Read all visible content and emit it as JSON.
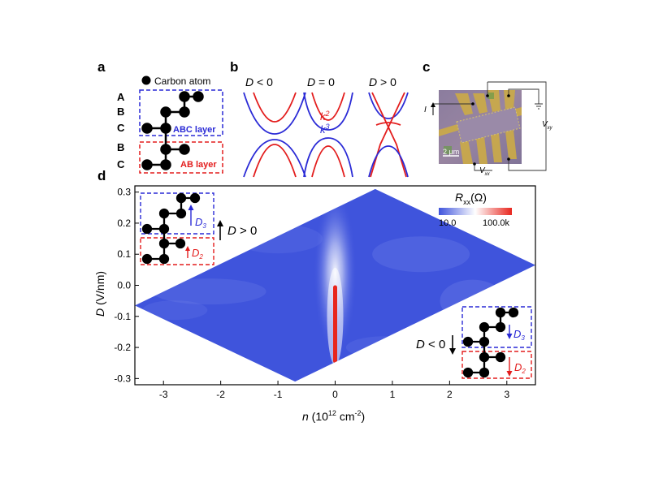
{
  "panels": {
    "a": {
      "label": "a",
      "legend": "Carbon atom",
      "layers": [
        "A",
        "B",
        "C",
        "B",
        "C"
      ],
      "abc_label": "ABC layer",
      "ab_label": "AB layer"
    },
    "b": {
      "label": "b",
      "titles": [
        {
          "pre": "D",
          "post": " < 0"
        },
        {
          "pre": "D",
          "post": " = 0"
        },
        {
          "pre": "D",
          "post": " > 0"
        }
      ],
      "k2": "k",
      "k2_sup": "2",
      "k3": "k",
      "k3_sup": "3"
    },
    "c": {
      "label": "c",
      "current": "I",
      "vxy": "V",
      "vxy_sub": "xy",
      "vxx": "V",
      "vxx_sub": "xx",
      "scalebar": "2 μm"
    },
    "d": {
      "label": "d",
      "colorbar_title": "R",
      "colorbar_sub": "xx",
      "colorbar_unit": "(Ω)",
      "colorbar_min": "10.0",
      "colorbar_max": "100.0k",
      "field_pos": "D > 0",
      "field_neg": "D < 0",
      "d3": "D",
      "d3_sub": "3",
      "d2": "D",
      "d2_sub": "2"
    }
  },
  "chart_data": {
    "type": "heatmap",
    "xlabel_main": "n",
    "xlabel_unit": " (10",
    "xlabel_exp": "12",
    "xlabel_unit2": " cm",
    "xlabel_exp2": "-2",
    "xlabel_close": ")",
    "ylabel_main": "D",
    "ylabel_unit": " (V/nm)",
    "xlim": [
      -3.5,
      3.5
    ],
    "ylim": [
      -0.32,
      0.32
    ],
    "xticks": [
      -3,
      -2,
      -1,
      0,
      1,
      2,
      3
    ],
    "xtick_labels": [
      "-3",
      "-2",
      "-1",
      "0",
      "1",
      "2",
      "3"
    ],
    "yticks": [
      -0.3,
      -0.2,
      -0.1,
      0.0,
      0.1,
      0.2,
      0.3
    ],
    "ytick_labels": [
      "-0.3",
      "-0.2",
      "-0.1",
      "0.0",
      "0.1",
      "0.2",
      "0.3"
    ],
    "data_region_vertices": [
      {
        "n": -3.5,
        "D": -0.065
      },
      {
        "n": 0.7,
        "D": 0.31
      },
      {
        "n": 3.5,
        "D": 0.065
      },
      {
        "n": -0.7,
        "D": -0.31
      }
    ],
    "peak_line": {
      "n": 0.0,
      "D_from": -0.25,
      "D_to": 0.0
    },
    "colorscale": {
      "min": 10.0,
      "max": 100000.0,
      "low_color": "#3f54dc",
      "high_color": "#e8261e"
    }
  },
  "colors": {
    "blue": "#2a2ad6",
    "red": "#e31d1d",
    "heat_blue": "#4458e0",
    "heat_red": "#e42a22"
  }
}
